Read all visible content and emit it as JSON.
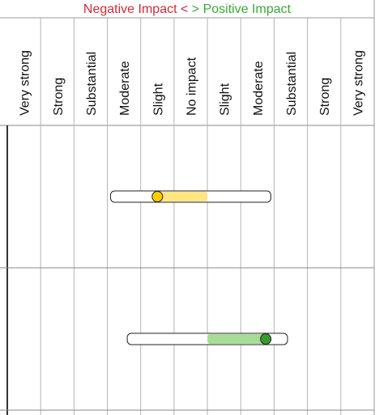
{
  "header": {
    "negative_label": "Negative Impact",
    "lt": "<",
    "gt": ">",
    "positive_label": "Positive Impact",
    "negative_color": "#d12a35",
    "positive_color": "#3aaa35"
  },
  "chart_data": {
    "type": "range",
    "categories": [
      "Very strong",
      "Strong",
      "Substantial",
      "Moderate",
      "Slight",
      "No impact",
      "Slight",
      "Moderate",
      "Substantial",
      "Strong",
      "Very strong"
    ],
    "scale": [
      -5,
      5
    ],
    "grid": true,
    "rows": [
      {
        "range": [
          -2,
          2
        ],
        "point": -1,
        "highlight": [
          -1,
          0.5
        ],
        "color": "#ffcc00",
        "highlight_color": "#ffe680"
      },
      {
        "range": [
          -1.5,
          2.5
        ],
        "point": 2.25,
        "highlight": [
          0.5,
          2.25
        ],
        "color": "#3a9a2e",
        "highlight_color": "#a8dc96"
      }
    ]
  }
}
